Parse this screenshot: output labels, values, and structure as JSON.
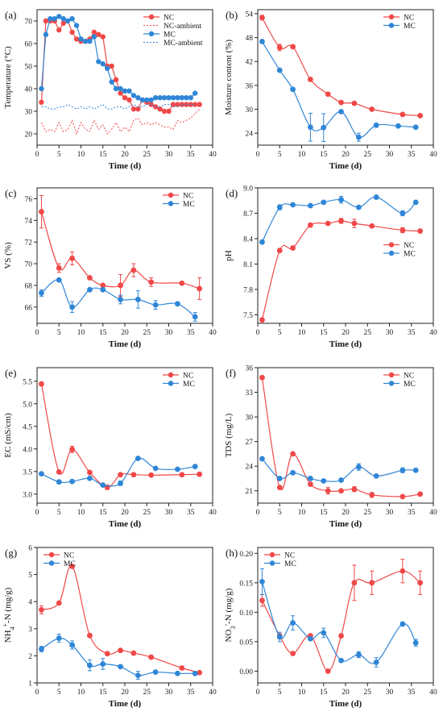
{
  "colors": {
    "NC": "#f04848",
    "MC": "#2f86d6",
    "frame": "#222222"
  },
  "chart_data": [
    {
      "panel": "(a)",
      "type": "line",
      "xlabel": "Time (d)",
      "ylabel": "Temperature (°C)",
      "xlim": [
        0,
        40
      ],
      "ylim": [
        15,
        75
      ],
      "xticks": [
        0,
        5,
        10,
        15,
        20,
        25,
        30,
        35,
        40
      ],
      "yticks": [
        20,
        30,
        40,
        50,
        60,
        70
      ],
      "legend_position": "top-right",
      "series": [
        {
          "name": "NC",
          "color": "NC",
          "style": "markers-line",
          "x": [
            1,
            2,
            3,
            4,
            5,
            6,
            7,
            8,
            9,
            10,
            11,
            12,
            13,
            14,
            15,
            16,
            17,
            18,
            19,
            20,
            21,
            22,
            23,
            24,
            25,
            26,
            27,
            28,
            29,
            30,
            31,
            32,
            33,
            34,
            35,
            36,
            37
          ],
          "y": [
            34,
            70,
            70,
            70,
            66,
            69,
            70,
            65,
            62,
            61,
            61,
            62,
            65,
            64,
            63,
            50,
            50,
            44,
            38,
            36,
            35,
            31,
            31,
            35,
            34,
            33,
            32,
            31,
            30,
            30,
            33,
            33,
            33,
            33,
            33,
            33,
            33
          ]
        },
        {
          "name": "NC-ambient",
          "color": "NC",
          "style": "dotted",
          "x": [
            1,
            2,
            3,
            4,
            5,
            6,
            7,
            8,
            9,
            10,
            11,
            12,
            13,
            14,
            15,
            16,
            17,
            18,
            19,
            20,
            21,
            22,
            23,
            24,
            25,
            26,
            27,
            28,
            29,
            30,
            31,
            32,
            33,
            34,
            35,
            36,
            37
          ],
          "y": [
            25,
            21,
            22,
            21,
            25,
            21,
            22,
            26,
            20,
            25,
            22,
            21,
            26,
            22,
            24,
            20,
            22,
            25,
            21,
            23,
            21,
            26,
            27,
            24,
            25,
            24,
            25,
            24,
            23,
            23,
            22,
            26,
            25,
            26,
            27,
            29,
            31
          ]
        },
        {
          "name": "MC",
          "color": "MC",
          "style": "markers-line",
          "x": [
            1,
            2,
            3,
            4,
            5,
            6,
            7,
            8,
            9,
            10,
            11,
            12,
            13,
            14,
            15,
            16,
            17,
            18,
            19,
            20,
            21,
            22,
            23,
            24,
            25,
            26,
            27,
            28,
            29,
            30,
            31,
            32,
            33,
            34,
            35,
            36
          ],
          "y": [
            40,
            64,
            71,
            71,
            72,
            71,
            70,
            71,
            68,
            62,
            61,
            61,
            63,
            52,
            51,
            49,
            43,
            40,
            40,
            39,
            39,
            37,
            36,
            35,
            35,
            35,
            36,
            36,
            36,
            36,
            36,
            36,
            36,
            36,
            36,
            38
          ]
        },
        {
          "name": "MC-ambient",
          "color": "MC",
          "style": "dotted",
          "x": [
            1,
            2,
            3,
            4,
            5,
            6,
            7,
            8,
            9,
            10,
            11,
            12,
            13,
            14,
            15,
            16,
            17,
            18,
            19,
            20,
            21,
            22,
            23,
            24,
            25,
            26,
            27,
            28,
            29,
            30,
            31,
            32,
            33,
            34,
            35,
            36
          ],
          "y": [
            32,
            32,
            31,
            31,
            32,
            32,
            33,
            32,
            31,
            32,
            31,
            32,
            31,
            32,
            33,
            31,
            31,
            32,
            32,
            31,
            32,
            33,
            32,
            32,
            33,
            33,
            32,
            32,
            33,
            33,
            32,
            32,
            33,
            33,
            33,
            33
          ]
        }
      ]
    },
    {
      "panel": "(b)",
      "type": "scatter",
      "xlabel": "Time (d)",
      "ylabel": "Moisture content (%)",
      "xlim": [
        0,
        40
      ],
      "ylim": [
        21,
        55
      ],
      "xticks": [
        0,
        5,
        10,
        15,
        20,
        25,
        30,
        35,
        40
      ],
      "yticks": [
        24,
        30,
        36,
        42,
        48,
        54
      ],
      "legend_position": "top-right",
      "series": [
        {
          "name": "NC",
          "color": "NC",
          "x": [
            1,
            5,
            8,
            12,
            16,
            19,
            22,
            26,
            33,
            37
          ],
          "y": [
            53,
            45.5,
            45.7,
            37.5,
            33.8,
            31.7,
            31.5,
            30,
            28.7,
            28.4
          ],
          "err": [
            0.6,
            0.8,
            0,
            0,
            0,
            0,
            0,
            0,
            0,
            0
          ]
        },
        {
          "name": "MC",
          "color": "MC",
          "x": [
            1,
            5,
            8,
            12,
            15,
            19,
            23,
            27,
            32,
            36
          ],
          "y": [
            47,
            39.8,
            35,
            25.5,
            25.4,
            29.4,
            23,
            26,
            25.8,
            25.5
          ],
          "err": [
            0,
            0,
            0,
            3.5,
            3.5,
            0,
            1,
            0,
            0,
            0
          ]
        }
      ]
    },
    {
      "panel": "(c)",
      "type": "scatter",
      "xlabel": "Time (d)",
      "ylabel": "VS (%)",
      "xlim": [
        0,
        40
      ],
      "ylim": [
        64.5,
        77
      ],
      "xticks": [
        0,
        5,
        10,
        15,
        20,
        25,
        30,
        35,
        40
      ],
      "yticks": [
        66,
        68,
        70,
        72,
        74,
        76
      ],
      "legend_position": "top-right",
      "series": [
        {
          "name": "NC",
          "color": "NC",
          "x": [
            1,
            5,
            8,
            12,
            15,
            19,
            22,
            26,
            33,
            37
          ],
          "y": [
            74.8,
            69.6,
            70.5,
            68.7,
            68,
            68,
            69.4,
            68.3,
            68.2,
            67.7
          ],
          "err": [
            1.5,
            0.4,
            0.6,
            0,
            0,
            1,
            0.6,
            0.4,
            0,
            1
          ]
        },
        {
          "name": "MC",
          "color": "MC",
          "x": [
            1,
            5,
            8,
            12,
            15,
            19,
            23,
            27,
            32,
            36
          ],
          "y": [
            67.3,
            68.5,
            66,
            67.6,
            67.6,
            66.7,
            66.7,
            66.2,
            66.3,
            65.1
          ],
          "err": [
            0.3,
            0,
            0.5,
            0,
            0,
            0.4,
            0.8,
            0.4,
            0,
            0.4
          ]
        }
      ]
    },
    {
      "panel": "(d)",
      "type": "scatter",
      "xlabel": "Time (d)",
      "ylabel": "pH",
      "xlim": [
        0,
        40
      ],
      "ylim": [
        7.4,
        9.0
      ],
      "xticks": [
        0,
        5,
        10,
        15,
        20,
        25,
        30,
        35,
        40
      ],
      "yticks": [
        7.5,
        7.8,
        8.1,
        8.4,
        8.7,
        9.0
      ],
      "legend_position": "center-right",
      "series": [
        {
          "name": "NC",
          "color": "NC",
          "x": [
            1,
            5,
            8,
            12,
            16,
            19,
            22,
            26,
            33,
            37
          ],
          "y": [
            7.44,
            8.26,
            8.29,
            8.56,
            8.58,
            8.61,
            8.58,
            8.55,
            8.5,
            8.49
          ],
          "err": [
            0,
            0,
            0,
            0,
            0,
            0.03,
            0.05,
            0,
            0.03,
            0
          ]
        },
        {
          "name": "MC",
          "color": "MC",
          "x": [
            1,
            5,
            8,
            12,
            15,
            19,
            23,
            27,
            33,
            36
          ],
          "y": [
            8.36,
            8.77,
            8.8,
            8.79,
            8.83,
            8.86,
            8.77,
            8.89,
            8.7,
            8.83
          ],
          "err": [
            0,
            0.03,
            0,
            0,
            0,
            0.04,
            0,
            0,
            0.03,
            0
          ]
        }
      ]
    },
    {
      "panel": "(e)",
      "type": "scatter",
      "xlabel": "Time (d)",
      "ylabel": "EC (mS/cm)",
      "xlim": [
        0,
        40
      ],
      "ylim": [
        2.8,
        5.8
      ],
      "xticks": [
        0,
        5,
        10,
        15,
        20,
        25,
        30,
        35,
        40
      ],
      "yticks": [
        3.0,
        3.5,
        4.0,
        4.5,
        5.0,
        5.5
      ],
      "legend_position": "top-right",
      "series": [
        {
          "name": "NC",
          "color": "NC",
          "x": [
            1,
            5,
            8,
            12,
            16,
            19,
            22,
            26,
            33,
            37
          ],
          "y": [
            5.44,
            3.49,
            3.99,
            3.48,
            3.15,
            3.43,
            3.43,
            3.42,
            3.43,
            3.44
          ],
          "err": [
            0,
            0,
            0.07,
            0,
            0.05,
            0,
            0,
            0,
            0,
            0
          ]
        },
        {
          "name": "MC",
          "color": "MC",
          "x": [
            1,
            5,
            8,
            12,
            15,
            19,
            23,
            27,
            32,
            36
          ],
          "y": [
            3.45,
            3.27,
            3.28,
            3.35,
            3.2,
            3.24,
            3.79,
            3.57,
            3.55,
            3.61
          ],
          "err": [
            0,
            0,
            0,
            0,
            0,
            0.05,
            0,
            0,
            0,
            0
          ]
        }
      ]
    },
    {
      "panel": "(f)",
      "type": "scatter",
      "xlabel": "Time (d)",
      "ylabel": "TDS (mg/L)",
      "xlim": [
        0,
        40
      ],
      "ylim": [
        19.5,
        36
      ],
      "xticks": [
        0,
        5,
        10,
        15,
        20,
        25,
        30,
        35,
        40
      ],
      "yticks": [
        21,
        24,
        27,
        30,
        33,
        36
      ],
      "legend_position": "top-right",
      "series": [
        {
          "name": "NC",
          "color": "NC",
          "x": [
            1,
            5,
            8,
            12,
            16,
            19,
            22,
            26,
            33,
            37
          ],
          "y": [
            34.8,
            21.4,
            25.5,
            21.8,
            21,
            21,
            21.2,
            20.5,
            20.3,
            20.6
          ],
          "err": [
            0,
            0,
            0,
            0,
            0.4,
            0,
            0.3,
            0.3,
            0,
            0
          ]
        },
        {
          "name": "MC",
          "color": "MC",
          "x": [
            1,
            5,
            8,
            12,
            15,
            19,
            23,
            27,
            33,
            36
          ],
          "y": [
            24.9,
            22.5,
            23.2,
            22.5,
            22.2,
            22.3,
            23.9,
            22.8,
            23.5,
            23.5
          ],
          "err": [
            0,
            0,
            0,
            0,
            0,
            0,
            0.4,
            0,
            0.3,
            0
          ]
        }
      ]
    },
    {
      "panel": "(g)",
      "type": "scatter",
      "xlabel": "Time (d)",
      "ylabel": "NH4+-N (mg/g)",
      "xlim": [
        0,
        40
      ],
      "ylim": [
        1,
        6
      ],
      "xticks": [
        0,
        5,
        10,
        15,
        20,
        25,
        30,
        35,
        40
      ],
      "yticks": [
        1,
        2,
        3,
        4,
        5,
        6
      ],
      "legend_position": "top-left",
      "series": [
        {
          "name": "NC",
          "color": "NC",
          "x": [
            1,
            5,
            8,
            12,
            16,
            19,
            22,
            26,
            33,
            37
          ],
          "y": [
            3.7,
            3.95,
            5.3,
            2.75,
            2.08,
            2.2,
            2.1,
            1.95,
            1.55,
            1.38
          ],
          "err": [
            0.15,
            0,
            0,
            0,
            0,
            0,
            0,
            0,
            0,
            0
          ]
        },
        {
          "name": "MC",
          "color": "MC",
          "x": [
            1,
            5,
            8,
            12,
            15,
            19,
            23,
            27,
            32,
            36
          ],
          "y": [
            2.25,
            2.65,
            2.4,
            1.65,
            1.7,
            1.6,
            1.28,
            1.4,
            1.35,
            1.35
          ],
          "err": [
            0.1,
            0.15,
            0.15,
            0.2,
            0.2,
            0,
            0.15,
            0,
            0,
            0
          ]
        }
      ]
    },
    {
      "panel": "(h)",
      "type": "scatter",
      "xlabel": "Time (d)",
      "ylabel": "NO3--N (mg/g)",
      "xlim": [
        0,
        40
      ],
      "ylim": [
        -0.02,
        0.21
      ],
      "xticks": [
        0,
        5,
        10,
        15,
        20,
        25,
        30,
        35,
        40
      ],
      "yticks": [
        0.0,
        0.05,
        0.1,
        0.15,
        0.2
      ],
      "legend_position": "top-left",
      "series": [
        {
          "name": "NC",
          "color": "NC",
          "x": [
            1,
            5,
            8,
            12,
            16,
            19,
            22,
            26,
            33,
            37
          ],
          "y": [
            0.12,
            0.06,
            0.03,
            0.06,
            0.0,
            0.06,
            0.15,
            0.15,
            0.17,
            0.15
          ],
          "err": [
            0.01,
            0,
            0,
            0,
            0,
            0,
            0.03,
            0.02,
            0.02,
            0.02
          ]
        },
        {
          "name": "MC",
          "color": "MC",
          "x": [
            1,
            5,
            8,
            12,
            15,
            19,
            23,
            27,
            33,
            36
          ],
          "y": [
            0.152,
            0.058,
            0.082,
            0.055,
            0.065,
            0.018,
            0.028,
            0.015,
            0.08,
            0.048
          ],
          "err": [
            0.022,
            0.008,
            0.012,
            0,
            0.008,
            0,
            0.005,
            0.008,
            0,
            0.006
          ]
        }
      ]
    }
  ]
}
